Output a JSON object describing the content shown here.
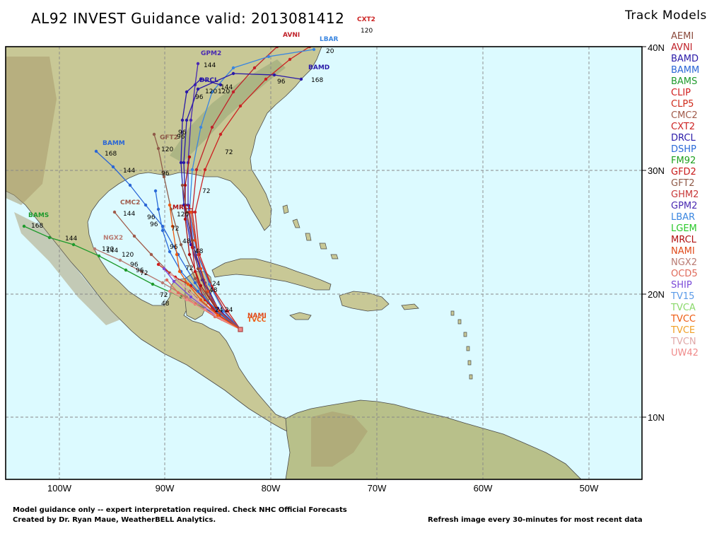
{
  "title": "AL92 INVEST Guidance valid: 2013081412",
  "legend": {
    "title": "Track Models",
    "models": [
      {
        "name": "AEMI",
        "color": "#8b4a3c"
      },
      {
        "name": "AVNI",
        "color": "#c0222a"
      },
      {
        "name": "BAMD",
        "color": "#2a1aa8"
      },
      {
        "name": "BAMM",
        "color": "#2a66d6"
      },
      {
        "name": "BAMS",
        "color": "#1e9a2c"
      },
      {
        "name": "CLIP",
        "color": "#d01c1c"
      },
      {
        "name": "CLP5",
        "color": "#cf2a1a"
      },
      {
        "name": "CMC2",
        "color": "#a05a4a"
      },
      {
        "name": "CXT2",
        "color": "#cc2222"
      },
      {
        "name": "DRCL",
        "color": "#2a1aa8"
      },
      {
        "name": "DSHP",
        "color": "#2a6ad8"
      },
      {
        "name": "FM92",
        "color": "#1ea01e"
      },
      {
        "name": "GFD2",
        "color": "#c81818"
      },
      {
        "name": "GFT2",
        "color": "#8f5a48"
      },
      {
        "name": "GHM2",
        "color": "#c83838"
      },
      {
        "name": "GPM2",
        "color": "#4a2ab2"
      },
      {
        "name": "LBAR",
        "color": "#3a86e0"
      },
      {
        "name": "LGEM",
        "color": "#2ac82a"
      },
      {
        "name": "MRCL",
        "color": "#b01010"
      },
      {
        "name": "NAMI",
        "color": "#e04a1a"
      },
      {
        "name": "NGX2",
        "color": "#b87a72"
      },
      {
        "name": "OCD5",
        "color": "#e06a5a"
      },
      {
        "name": "SHIP",
        "color": "#7a4ad8"
      },
      {
        "name": "TV15",
        "color": "#5a9ae8"
      },
      {
        "name": "TVCA",
        "color": "#8ad86a"
      },
      {
        "name": "TVCC",
        "color": "#ee5a10"
      },
      {
        "name": "TVCE",
        "color": "#f0a028"
      },
      {
        "name": "TVCN",
        "color": "#e0a8a8"
      },
      {
        "name": "UW42",
        "color": "#f08a8a"
      }
    ]
  },
  "map": {
    "lon_labels": [
      "100W",
      "90W",
      "80W",
      "70W",
      "60W",
      "50W"
    ],
    "lat_labels": [
      "40N",
      "30N",
      "20N",
      "10N"
    ],
    "ocean_color": "#dcfaff",
    "track_labels": [
      {
        "text": "CXT2",
        "color": "#cc2222"
      },
      {
        "text": "120",
        "color": "#000000"
      },
      {
        "text": "AVNI",
        "color": "#c0222a"
      },
      {
        "text": "LBAR",
        "color": "#3a86e0"
      },
      {
        "text": "20",
        "color": "#000000"
      },
      {
        "text": "GPM2",
        "color": "#4a2ab2"
      },
      {
        "text": "144",
        "color": "#000000"
      },
      {
        "text": "120",
        "color": "#000000"
      },
      {
        "text": "BAMD",
        "color": "#2a1aa8"
      },
      {
        "text": "168",
        "color": "#000000"
      },
      {
        "text": "96",
        "color": "#000000"
      },
      {
        "text": "DRCL",
        "color": "#2a1aa8"
      },
      {
        "text": "144",
        "color": "#000000"
      },
      {
        "text": "120",
        "color": "#000000"
      },
      {
        "text": "96",
        "color": "#000000"
      },
      {
        "text": "BAMM",
        "color": "#2a66d6"
      },
      {
        "text": "168",
        "color": "#000000"
      },
      {
        "text": "GFT2",
        "color": "#8f5a48"
      },
      {
        "text": "120",
        "color": "#000000"
      },
      {
        "text": "96",
        "color": "#000000"
      },
      {
        "text": "96",
        "color": "#000000"
      },
      {
        "text": "72",
        "color": "#000000"
      },
      {
        "text": "144",
        "color": "#000000"
      },
      {
        "text": "96",
        "color": "#000000"
      },
      {
        "text": "72",
        "color": "#000000"
      },
      {
        "text": "BAMS",
        "color": "#1e9a2c"
      },
      {
        "text": "168",
        "color": "#000000"
      },
      {
        "text": "144",
        "color": "#000000"
      },
      {
        "text": "CMC2",
        "color": "#a05a4a"
      },
      {
        "text": "144",
        "color": "#000000"
      },
      {
        "text": "120",
        "color": "#000000"
      },
      {
        "text": "96",
        "color": "#000000"
      },
      {
        "text": "NGX2",
        "color": "#b87a72"
      },
      {
        "text": "120",
        "color": "#000000"
      },
      {
        "text": "144",
        "color": "#000000"
      },
      {
        "text": "96",
        "color": "#000000"
      },
      {
        "text": "96",
        "color": "#000000"
      },
      {
        "text": "72",
        "color": "#000000"
      },
      {
        "text": "72",
        "color": "#000000"
      },
      {
        "text": "48",
        "color": "#000000"
      },
      {
        "text": "48",
        "color": "#000000"
      },
      {
        "text": "24",
        "color": "#000000"
      },
      {
        "text": "48",
        "color": "#000000"
      },
      {
        "text": "24",
        "color": "#000000"
      },
      {
        "text": "24",
        "color": "#000000"
      },
      {
        "text": "96",
        "color": "#000000"
      },
      {
        "text": "MRCL",
        "color": "#b01010"
      },
      {
        "text": "120",
        "color": "#000000"
      },
      {
        "text": "72",
        "color": "#000000"
      },
      {
        "text": "48",
        "color": "#000000"
      },
      {
        "text": "96",
        "color": "#000000"
      },
      {
        "text": "72",
        "color": "#000000"
      },
      {
        "text": "TVCC",
        "color": "#ee5a10"
      },
      {
        "text": "NAMI",
        "color": "#e04a1a"
      }
    ]
  },
  "footer": {
    "line1": "Model guidance only -- expert interpretation required.  Check NHC Official Forecasts",
    "line2": "Created by Dr. Ryan Maue, WeatherBELL Analytics.",
    "right": "Refresh image every 30-minutes for most recent data"
  }
}
